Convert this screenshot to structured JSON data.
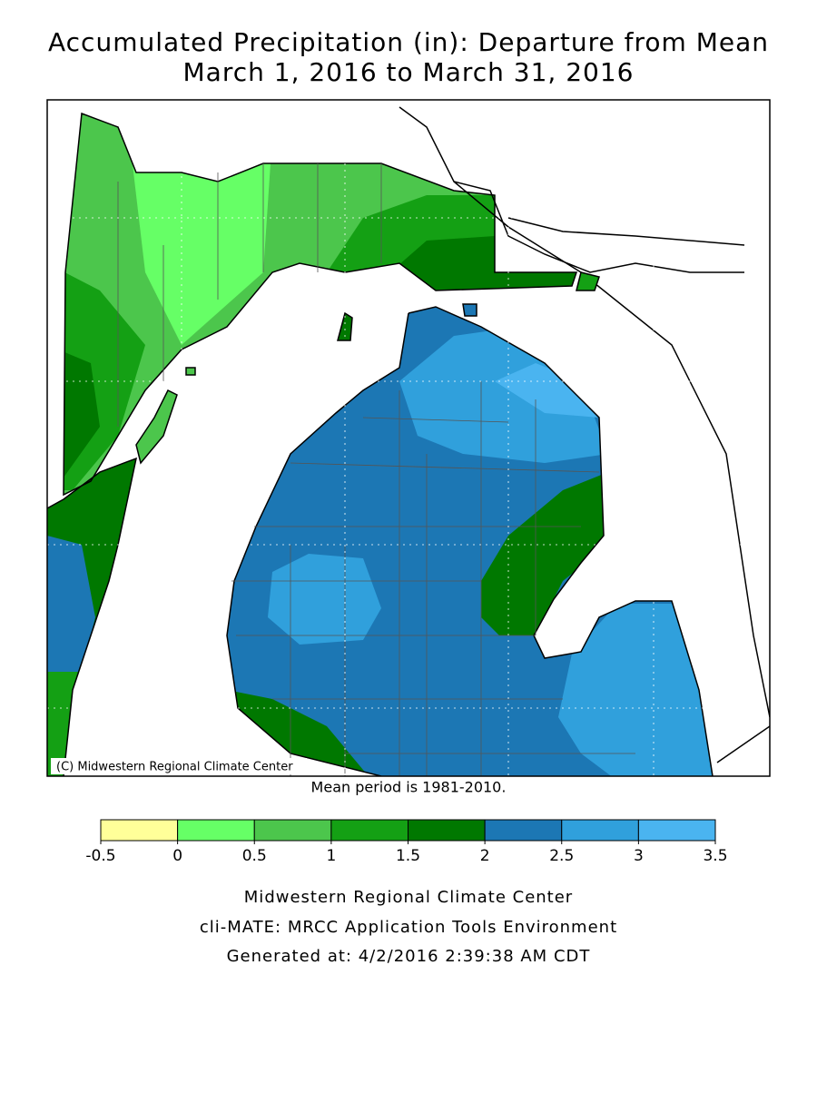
{
  "title": [
    "Accumulated Precipitation (in): Departure from Mean",
    "March 1, 2016 to March 31, 2016"
  ],
  "map": {
    "credit": "(C) Midwestern Regional Climate Center",
    "note": "Mean period is 1981-2010."
  },
  "legend": {
    "bins": [
      -0.5,
      0,
      0.5,
      1,
      1.5,
      2,
      2.5,
      3,
      3.5
    ],
    "colors": [
      "#ffff99",
      "#66ff66",
      "#4cc64c",
      "#14a014",
      "#007800",
      "#1c77b4",
      "#30a0dc",
      "#4ab4f0"
    ]
  },
  "footer": [
    "Midwestern Regional Climate Center",
    "cli-MATE: MRCC Application Tools Environment",
    "Generated at: 4/2/2016 2:39:38 AM CDT"
  ]
}
